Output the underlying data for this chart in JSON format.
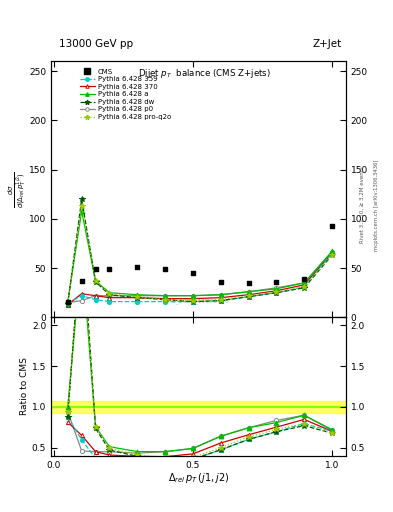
{
  "cms_x": [
    0.05,
    0.1,
    0.15,
    0.2,
    0.3,
    0.4,
    0.5,
    0.6,
    0.7,
    0.8,
    0.9,
    1.0
  ],
  "cms_y": [
    16,
    37,
    49,
    49,
    51,
    49,
    45,
    36,
    35,
    36,
    39,
    93
  ],
  "x_359": [
    0.05,
    0.1,
    0.15,
    0.2,
    0.3,
    0.4,
    0.5,
    0.6,
    0.7,
    0.8,
    0.9,
    1.0
  ],
  "y_359": [
    14,
    22,
    18,
    16,
    16,
    16,
    16,
    17,
    21,
    25,
    31,
    65
  ],
  "x_370": [
    0.05,
    0.1,
    0.15,
    0.2,
    0.3,
    0.4,
    0.5,
    0.6,
    0.7,
    0.8,
    0.9,
    1.0
  ],
  "y_370": [
    13,
    24,
    22,
    20,
    20,
    19,
    19,
    20,
    23,
    27,
    33,
    65
  ],
  "x_a": [
    0.05,
    0.1,
    0.15,
    0.2,
    0.3,
    0.4,
    0.5,
    0.6,
    0.7,
    0.8,
    0.9,
    1.0
  ],
  "y_a": [
    16,
    108,
    37,
    25,
    23,
    22,
    22,
    23,
    26,
    29,
    35,
    67
  ],
  "x_dw": [
    0.05,
    0.1,
    0.15,
    0.2,
    0.3,
    0.4,
    0.5,
    0.6,
    0.7,
    0.8,
    0.9,
    1.0
  ],
  "y_dw": [
    14,
    120,
    36,
    23,
    20,
    18,
    16,
    17,
    21,
    25,
    30,
    63
  ],
  "x_p0": [
    0.05,
    0.1,
    0.15,
    0.2,
    0.3,
    0.4,
    0.5,
    0.6,
    0.7,
    0.8,
    0.9,
    1.0
  ],
  "y_p0": [
    15,
    17,
    22,
    22,
    22,
    22,
    22,
    23,
    26,
    30,
    35,
    66
  ],
  "x_proq2o": [
    0.05,
    0.1,
    0.15,
    0.2,
    0.3,
    0.4,
    0.5,
    0.6,
    0.7,
    0.8,
    0.9,
    1.0
  ],
  "y_proq2o": [
    15,
    113,
    37,
    24,
    21,
    18,
    17,
    18,
    22,
    26,
    31,
    63
  ],
  "ratio_359": [
    0.875,
    0.595,
    0.367,
    0.327,
    0.314,
    0.327,
    0.356,
    0.472,
    0.6,
    0.694,
    0.795,
    0.699
  ],
  "ratio_370": [
    0.813,
    0.649,
    0.449,
    0.408,
    0.392,
    0.388,
    0.422,
    0.556,
    0.657,
    0.75,
    0.846,
    0.699
  ],
  "ratio_a": [
    1.0,
    2.92,
    0.755,
    0.51,
    0.451,
    0.449,
    0.489,
    0.639,
    0.743,
    0.806,
    0.897,
    0.72
  ],
  "ratio_dw": [
    0.875,
    3.24,
    0.735,
    0.469,
    0.392,
    0.367,
    0.356,
    0.472,
    0.6,
    0.694,
    0.769,
    0.677
  ],
  "ratio_p0": [
    0.938,
    0.459,
    0.449,
    0.449,
    0.431,
    0.449,
    0.489,
    0.639,
    0.743,
    0.833,
    0.897,
    0.71
  ],
  "ratio_proq2o": [
    0.938,
    3.05,
    0.755,
    0.49,
    0.412,
    0.367,
    0.378,
    0.5,
    0.629,
    0.722,
    0.795,
    0.677
  ],
  "color_359": "#00CCCC",
  "color_370": "#CC0000",
  "color_a": "#00BB00",
  "color_dw": "#005500",
  "color_p0": "#888888",
  "color_proq2o": "#99CC00",
  "ylim_main": [
    0,
    260
  ],
  "ylim_ratio": [
    0.4,
    2.1
  ],
  "xlim": [
    -0.01,
    1.05
  ]
}
